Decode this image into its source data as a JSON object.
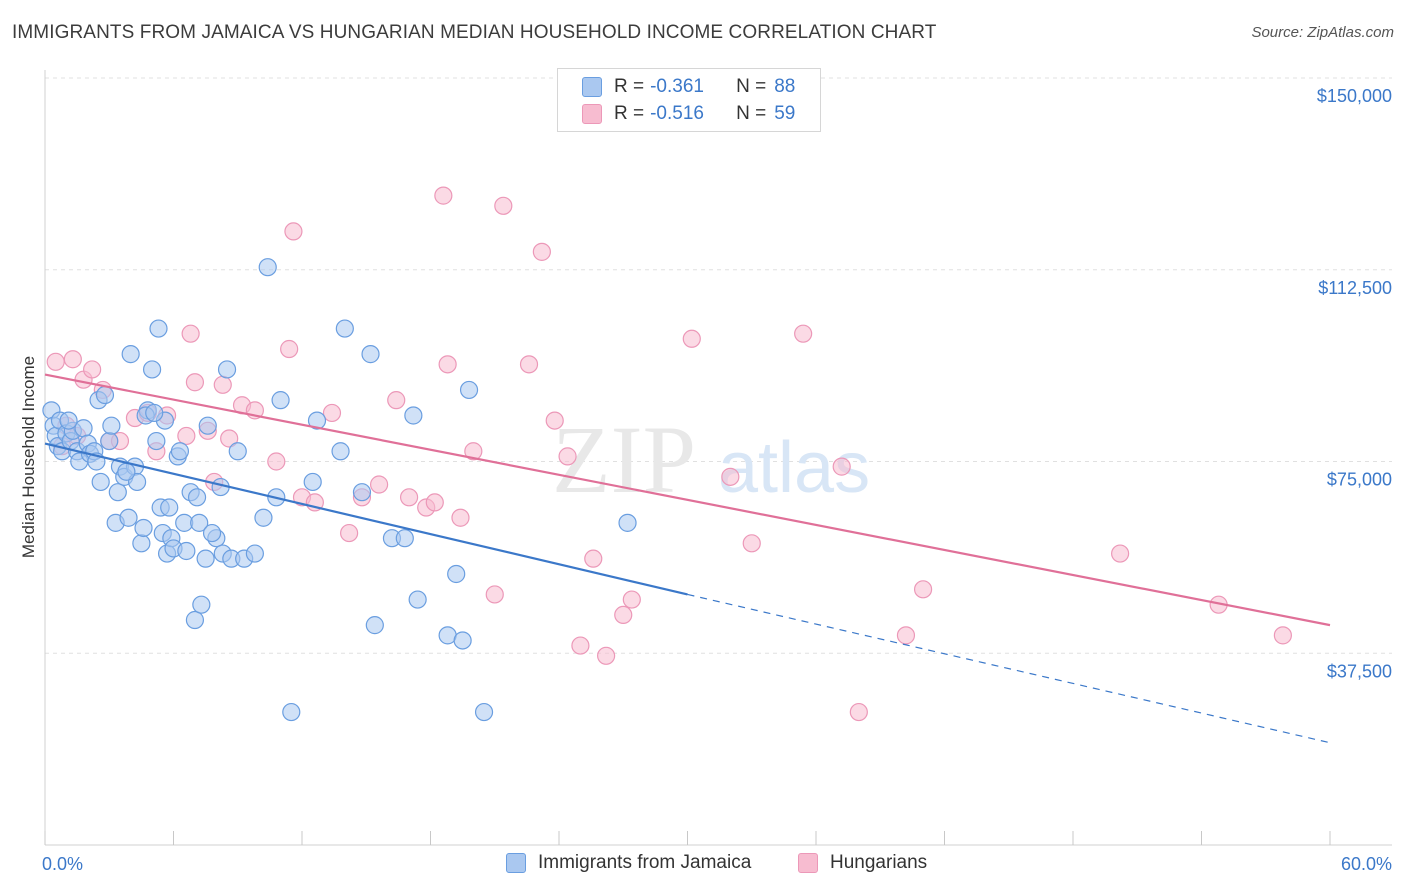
{
  "title": "IMMIGRANTS FROM JAMAICA VS HUNGARIAN MEDIAN HOUSEHOLD INCOME CORRELATION CHART",
  "source": "Source: ZipAtlas.com",
  "watermark": {
    "zip": "ZIP",
    "atlas": "atlas"
  },
  "colors": {
    "blue": "#3b78c9",
    "blue_fill": "#aac8f0",
    "blue_stroke": "#6a9ee0",
    "pink": "#e07098",
    "pink_fill": "#f7bcd0",
    "pink_stroke": "#ec98b8",
    "grid": "#e0e0e0",
    "axis_text": "#3b78c9"
  },
  "legend": {
    "rows": [
      {
        "r_label": "R =",
        "r_value": "-0.361",
        "n_label": "N =",
        "n_value": "88"
      },
      {
        "r_label": "R =",
        "r_value": "-0.516",
        "n_label": "N =",
        "n_value": "59"
      }
    ]
  },
  "chart_data": {
    "type": "scatter",
    "title": "IMMIGRANTS FROM JAMAICA VS HUNGARIAN MEDIAN HOUSEHOLD INCOME CORRELATION CHART",
    "xlabel": "",
    "ylabel": "Median Household Income",
    "x_tick_labels": [
      "0.0%",
      "60.0%"
    ],
    "y_tick_labels": [
      "$150,000",
      "$112,500",
      "$75,000",
      "$37,500"
    ],
    "y_ticks": [
      150000,
      112500,
      75000,
      37500
    ],
    "xlim": [
      0,
      60
    ],
    "ylim": [
      0,
      155000
    ],
    "grid": true,
    "legend_position": "top-center",
    "series": [
      {
        "name": "Immigrants from Jamaica",
        "color": "#3b78c9",
        "trend": {
          "x": [
            0,
            30
          ],
          "y": [
            78500,
            49000
          ],
          "dashed_to": [
            60,
            20000
          ]
        },
        "points": [
          [
            0.3,
            85000
          ],
          [
            0.4,
            82000
          ],
          [
            0.5,
            80000
          ],
          [
            0.6,
            78000
          ],
          [
            0.7,
            83000
          ],
          [
            0.8,
            77000
          ],
          [
            1.0,
            80500
          ],
          [
            1.2,
            79000
          ],
          [
            1.3,
            81000
          ],
          [
            1.5,
            77000
          ],
          [
            1.6,
            75000
          ],
          [
            1.8,
            81500
          ],
          [
            2.0,
            78500
          ],
          [
            2.1,
            76500
          ],
          [
            2.3,
            77000
          ],
          [
            2.5,
            87000
          ],
          [
            2.6,
            71000
          ],
          [
            2.8,
            88000
          ],
          [
            3.0,
            79000
          ],
          [
            3.1,
            82000
          ],
          [
            3.3,
            63000
          ],
          [
            3.4,
            69000
          ],
          [
            3.5,
            74000
          ],
          [
            3.7,
            72000
          ],
          [
            3.9,
            64000
          ],
          [
            4.0,
            96000
          ],
          [
            4.2,
            74000
          ],
          [
            4.3,
            71000
          ],
          [
            4.5,
            59000
          ],
          [
            4.6,
            62000
          ],
          [
            4.8,
            85000
          ],
          [
            5.0,
            93000
          ],
          [
            5.2,
            79000
          ],
          [
            5.3,
            101000
          ],
          [
            5.4,
            66000
          ],
          [
            5.5,
            61000
          ],
          [
            5.6,
            83000
          ],
          [
            5.7,
            57000
          ],
          [
            5.8,
            66000
          ],
          [
            5.9,
            60000
          ],
          [
            6.0,
            58000
          ],
          [
            6.2,
            76000
          ],
          [
            6.3,
            77000
          ],
          [
            6.5,
            63000
          ],
          [
            6.6,
            57500
          ],
          [
            6.8,
            69000
          ],
          [
            7.0,
            44000
          ],
          [
            7.1,
            68000
          ],
          [
            7.2,
            63000
          ],
          [
            7.3,
            47000
          ],
          [
            7.5,
            56000
          ],
          [
            7.6,
            82000
          ],
          [
            8.0,
            60000
          ],
          [
            8.2,
            70000
          ],
          [
            8.3,
            57000
          ],
          [
            8.5,
            93000
          ],
          [
            8.7,
            56000
          ],
          [
            9.0,
            77000
          ],
          [
            9.3,
            56000
          ],
          [
            10.2,
            64000
          ],
          [
            10.4,
            113000
          ],
          [
            10.8,
            68000
          ],
          [
            11.0,
            87000
          ],
          [
            11.5,
            26000
          ],
          [
            12.5,
            71000
          ],
          [
            12.7,
            83000
          ],
          [
            13.8,
            77000
          ],
          [
            14.0,
            101000
          ],
          [
            14.8,
            69000
          ],
          [
            15.2,
            96000
          ],
          [
            15.4,
            43000
          ],
          [
            16.2,
            60000
          ],
          [
            16.8,
            60000
          ],
          [
            17.2,
            84000
          ],
          [
            17.4,
            48000
          ],
          [
            18.8,
            41000
          ],
          [
            19.2,
            53000
          ],
          [
            19.5,
            40000
          ],
          [
            19.8,
            89000
          ],
          [
            20.5,
            26000
          ],
          [
            27.2,
            63000
          ],
          [
            1.1,
            83000
          ],
          [
            2.4,
            75000
          ],
          [
            3.8,
            73000
          ],
          [
            4.7,
            84000
          ],
          [
            5.1,
            84500
          ],
          [
            7.8,
            61000
          ],
          [
            9.8,
            57000
          ]
        ]
      },
      {
        "name": "Hungarians",
        "color": "#e07098",
        "trend": {
          "x": [
            0,
            60
          ],
          "y": [
            92000,
            43000
          ]
        },
        "points": [
          [
            0.5,
            94500
          ],
          [
            0.8,
            78000
          ],
          [
            1.0,
            82000
          ],
          [
            1.3,
            95000
          ],
          [
            1.5,
            80000
          ],
          [
            1.8,
            91000
          ],
          [
            2.2,
            93000
          ],
          [
            2.7,
            89000
          ],
          [
            3.0,
            79000
          ],
          [
            3.5,
            79000
          ],
          [
            4.2,
            83500
          ],
          [
            4.8,
            84500
          ],
          [
            5.2,
            77000
          ],
          [
            5.7,
            84000
          ],
          [
            6.6,
            80000
          ],
          [
            6.8,
            100000
          ],
          [
            7.0,
            90500
          ],
          [
            7.6,
            81000
          ],
          [
            7.9,
            71000
          ],
          [
            8.3,
            90000
          ],
          [
            8.6,
            79500
          ],
          [
            9.2,
            86000
          ],
          [
            9.8,
            85000
          ],
          [
            10.8,
            75000
          ],
          [
            11.4,
            97000
          ],
          [
            11.6,
            120000
          ],
          [
            12.0,
            68000
          ],
          [
            12.6,
            67000
          ],
          [
            13.4,
            84500
          ],
          [
            14.2,
            61000
          ],
          [
            14.8,
            68000
          ],
          [
            15.6,
            70500
          ],
          [
            16.4,
            87000
          ],
          [
            17.0,
            68000
          ],
          [
            17.8,
            66000
          ],
          [
            18.2,
            67000
          ],
          [
            18.6,
            127000
          ],
          [
            18.8,
            94000
          ],
          [
            19.4,
            64000
          ],
          [
            20.0,
            77000
          ],
          [
            21.0,
            49000
          ],
          [
            21.4,
            125000
          ],
          [
            22.6,
            94000
          ],
          [
            23.2,
            116000
          ],
          [
            23.8,
            83000
          ],
          [
            24.4,
            76000
          ],
          [
            25.0,
            39000
          ],
          [
            25.6,
            56000
          ],
          [
            26.2,
            37000
          ],
          [
            27.0,
            45000
          ],
          [
            27.4,
            48000
          ],
          [
            30.2,
            99000
          ],
          [
            32.0,
            72000
          ],
          [
            33.0,
            59000
          ],
          [
            35.4,
            100000
          ],
          [
            37.2,
            74000
          ],
          [
            38.0,
            26000
          ],
          [
            40.2,
            41000
          ],
          [
            41.0,
            50000
          ]
        ],
        "extra_points": [
          [
            50.2,
            57000
          ],
          [
            54.8,
            47000
          ],
          [
            57.8,
            41000
          ]
        ]
      }
    ]
  }
}
